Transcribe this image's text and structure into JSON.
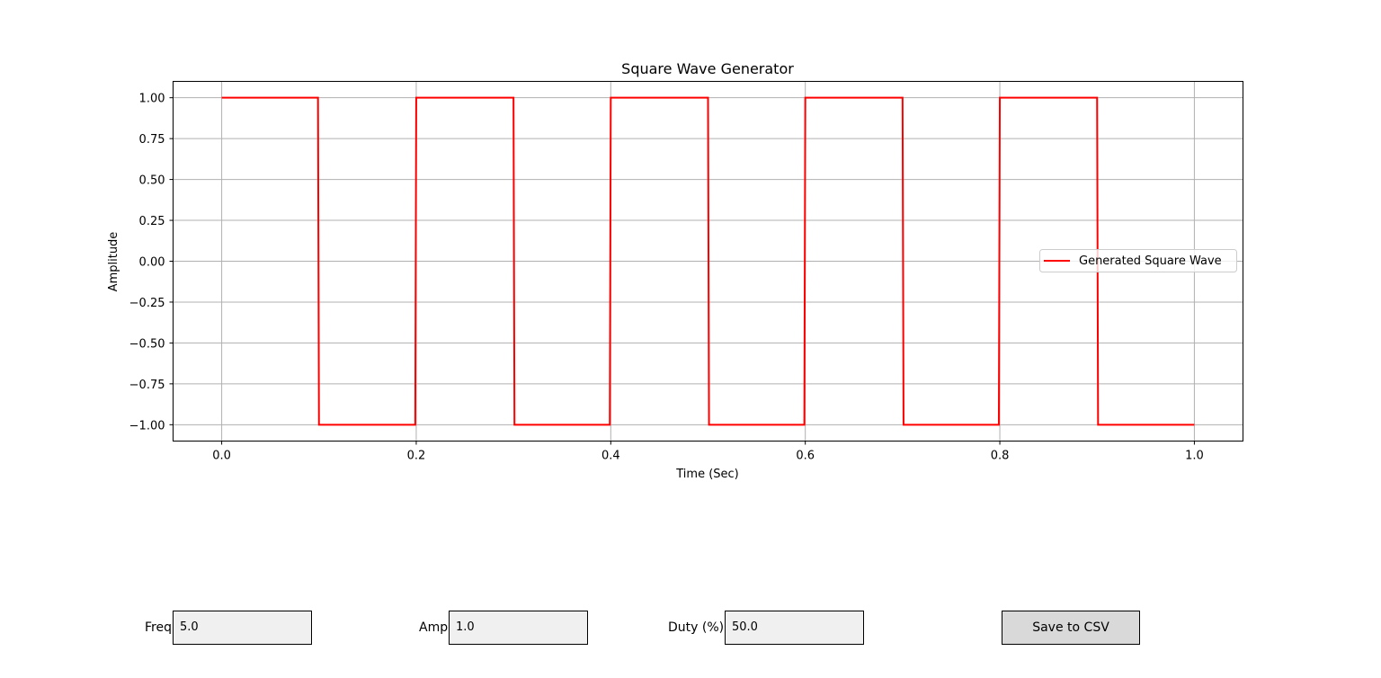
{
  "chart_data": {
    "type": "line",
    "title": "Square Wave Generator",
    "xlabel": "Time (Sec)",
    "ylabel": "Amplitude",
    "xlim": [
      -0.05,
      1.05
    ],
    "ylim": [
      -1.1,
      1.1
    ],
    "xticks": [
      "0.0",
      "0.2",
      "0.4",
      "0.6",
      "0.8",
      "1.0"
    ],
    "yticks": [
      "1.00",
      "0.75",
      "0.50",
      "0.25",
      "0.00",
      "−0.25",
      "−0.50",
      "−0.75",
      "−1.00"
    ],
    "grid": true,
    "legend_position": "center-right",
    "series": [
      {
        "name": "Generated Square Wave",
        "color": "#ff0000",
        "x": [
          0.0,
          0.099,
          0.1,
          0.199,
          0.2,
          0.3,
          0.301,
          0.399,
          0.4,
          0.5,
          0.501,
          0.599,
          0.6,
          0.7,
          0.701,
          0.799,
          0.8,
          0.9,
          0.901,
          1.0
        ],
        "y": [
          1,
          1,
          -1,
          -1,
          1,
          1,
          -1,
          -1,
          1,
          1,
          -1,
          -1,
          1,
          1,
          -1,
          -1,
          1,
          1,
          -1,
          -1
        ]
      }
    ]
  },
  "controls": {
    "freq_label": "Freq",
    "freq_value": "5.0",
    "amp_label": "Amp",
    "amp_value": "1.0",
    "duty_label": "Duty (%)",
    "duty_value": "50.0",
    "save_label": "Save to CSV"
  }
}
